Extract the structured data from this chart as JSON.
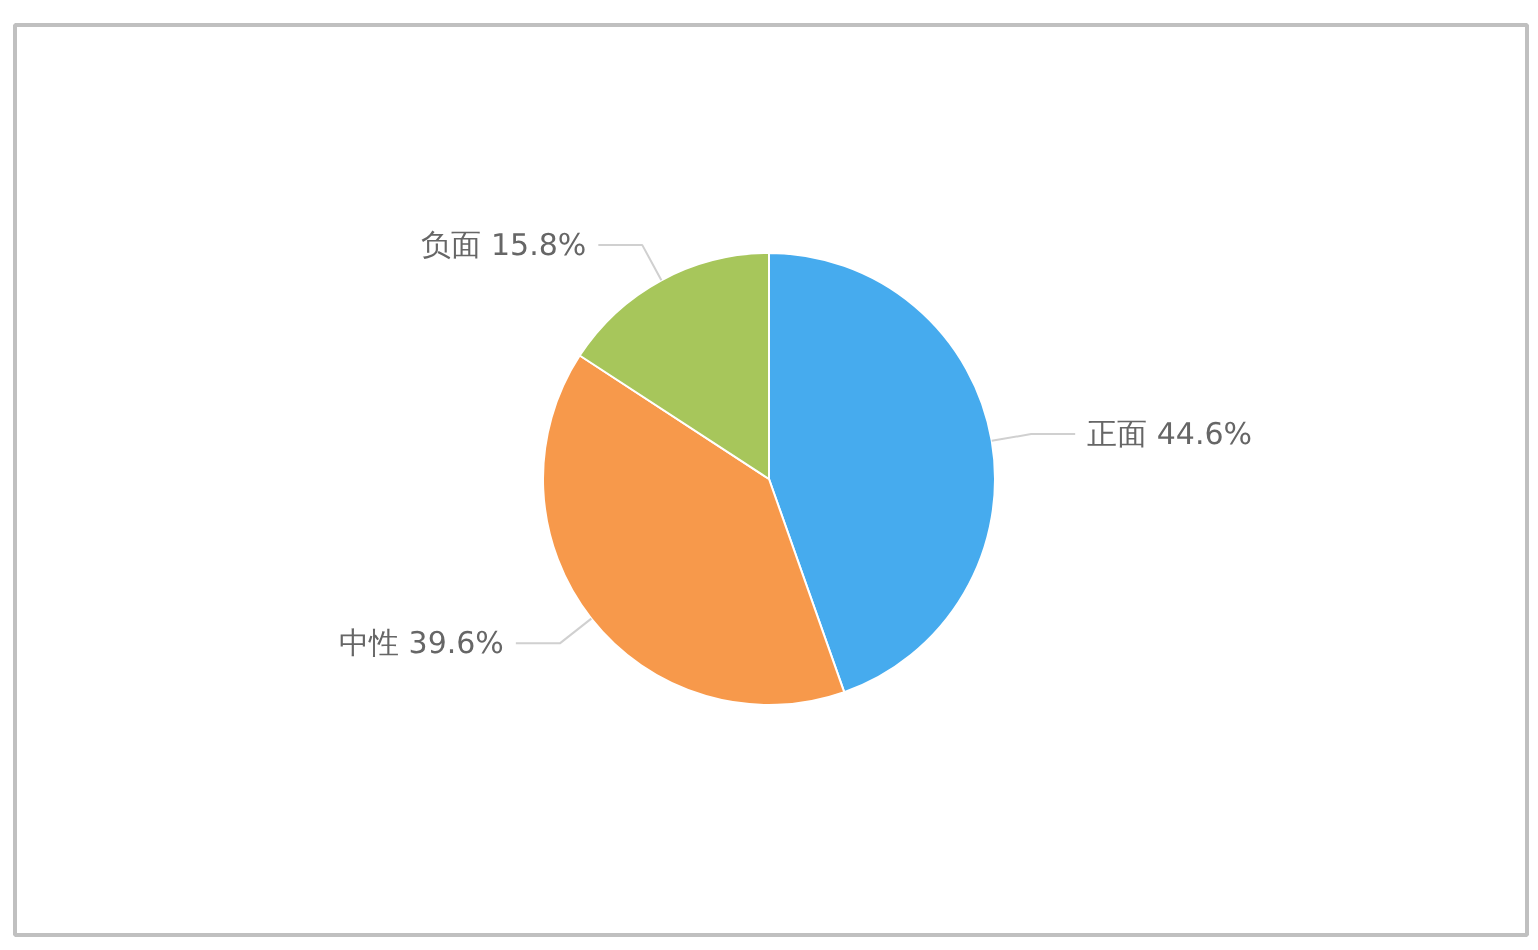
{
  "chart_data": {
    "type": "pie",
    "categories": [
      "正面",
      "中性",
      "负面"
    ],
    "values": [
      44.6,
      39.6,
      15.8
    ],
    "colors": [
      "#46abee",
      "#f7994b",
      "#a7c65b"
    ],
    "value_labels": [
      "44.6%",
      "39.6%",
      "15.8%"
    ]
  }
}
